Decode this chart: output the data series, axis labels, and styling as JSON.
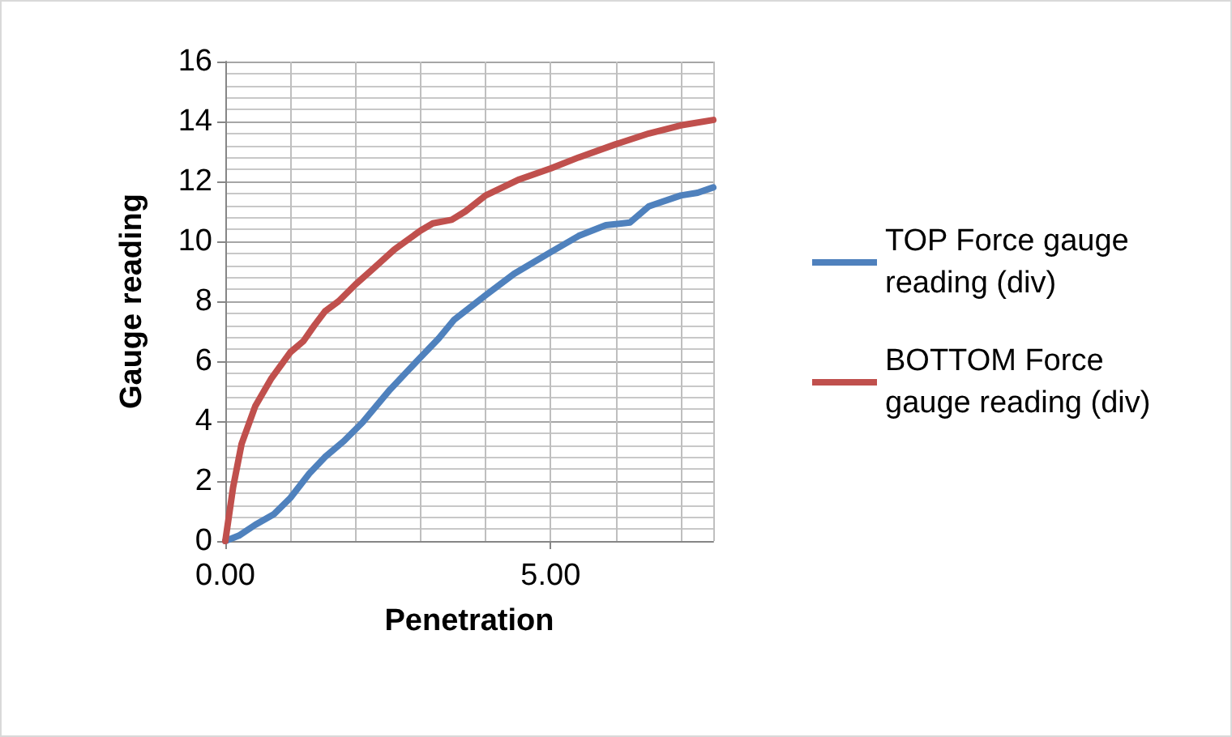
{
  "chart_data": {
    "type": "line",
    "xlabel": "Penetration",
    "ylabel": "Gauge reading",
    "xlim": [
      0,
      7.5
    ],
    "xticks": [
      {
        "value": 0,
        "label": "0.00"
      },
      {
        "value": 5,
        "label": "5.00"
      }
    ],
    "ylim": [
      0,
      16
    ],
    "yticks": [
      0,
      2,
      4,
      6,
      8,
      10,
      12,
      14,
      16
    ],
    "grid": true,
    "legend": "right",
    "marker": "none",
    "line_style": "solid",
    "series": [
      {
        "name": "TOP Force gauge reading (div)",
        "color": "#4f81bd",
        "x": [
          0,
          0.21,
          0.46,
          0.75,
          1.0,
          1.29,
          1.53,
          1.82,
          2.11,
          2.53,
          3.0,
          3.28,
          3.52,
          4.0,
          4.44,
          5.0,
          5.43,
          5.85,
          6.22,
          6.51,
          7.0,
          7.26,
          7.5
        ],
        "values": [
          0,
          0.18,
          0.54,
          0.9,
          1.44,
          2.25,
          2.8,
          3.33,
          3.96,
          5.05,
          6.13,
          6.76,
          7.39,
          8.2,
          8.92,
          9.64,
          10.18,
          10.54,
          10.63,
          11.17,
          11.53,
          11.62,
          11.8
        ]
      },
      {
        "name": "BOTTOM Force gauge reading (div)",
        "color": "#c0504d",
        "x": [
          0,
          0.12,
          0.25,
          0.46,
          0.7,
          1.0,
          1.2,
          1.37,
          1.53,
          1.74,
          2.0,
          2.28,
          2.6,
          3.0,
          3.19,
          3.48,
          3.69,
          4.0,
          4.52,
          5.0,
          5.43,
          6.0,
          6.51,
          7.0,
          7.5
        ],
        "values": [
          0,
          1.8,
          3.24,
          4.5,
          5.4,
          6.3,
          6.67,
          7.2,
          7.66,
          8.0,
          8.56,
          9.1,
          9.73,
          10.36,
          10.6,
          10.72,
          11.0,
          11.53,
          12.07,
          12.43,
          12.8,
          13.24,
          13.6,
          13.87,
          14.05
        ]
      }
    ]
  }
}
